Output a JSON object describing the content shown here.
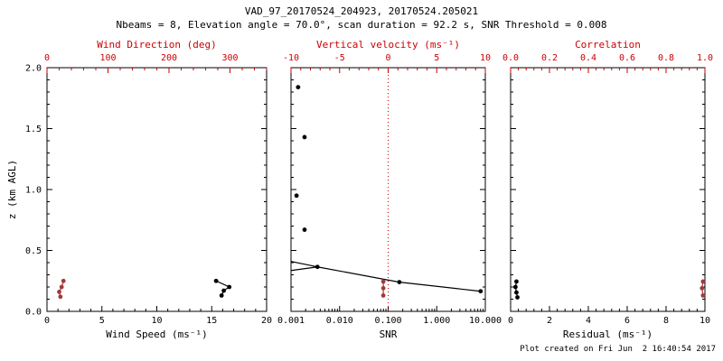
{
  "title": "VAD_97_20170524_204923, 20170524.205021",
  "subtitle": "Nbeams = 8, Elevation angle = 70.0°, scan duration = 92.2 s, SNR Threshold = 0.008",
  "footer": "Plot created on Fri Jun  2 16:40:54 2017",
  "ylabel": "z (km AGL)",
  "colors": {
    "axis_red": "#cc0000",
    "data_red": "#a33a3a",
    "black": "#000000"
  },
  "chart_data": {
    "type": "scatter",
    "ylabel": "z (km AGL)",
    "ylim": [
      0.0,
      2.0
    ],
    "yticks": [
      0.0,
      0.5,
      1.0,
      1.5,
      2.0
    ],
    "ytick_labels": [
      "0.0",
      "0.5",
      "1.0",
      "1.5",
      "2.0"
    ],
    "panels": [
      {
        "name": "wind-speed-panel",
        "xlabel_bottom": "Wind Speed (ms⁻¹)",
        "xlabel_top": "Wind Direction (deg)",
        "xlim_bottom": [
          0,
          20
        ],
        "xticks_bottom": [
          0,
          5,
          10,
          15,
          20
        ],
        "xtick_labels_bottom": [
          "0",
          "5",
          "10",
          "15",
          "20"
        ],
        "xlim_top": [
          0,
          360
        ],
        "xticks_top": [
          0,
          100,
          200,
          300
        ],
        "xtick_labels_top": [
          "0",
          "100",
          "200",
          "300"
        ],
        "series": [
          {
            "name": "wind-speed-points",
            "axis": "bottom",
            "color": "black",
            "line": true,
            "marker": true,
            "points": [
              [
                15.4,
                0.25
              ],
              [
                16.6,
                0.2
              ],
              [
                16.1,
                0.17
              ],
              [
                15.9,
                0.13
              ]
            ]
          },
          {
            "name": "wind-direction-points",
            "axis": "top",
            "color": "red",
            "line": true,
            "marker": true,
            "points": [
              [
                27,
                0.25
              ],
              [
                24,
                0.2
              ],
              [
                20,
                0.16
              ],
              [
                22,
                0.12
              ]
            ]
          }
        ]
      },
      {
        "name": "snr-panel",
        "xlabel_bottom": "SNR",
        "xlabel_top": "Vertical velocity (ms⁻¹)",
        "xscale_bottom": "log",
        "xlim_bottom": [
          0.001,
          10
        ],
        "xticks_bottom": [
          0.001,
          0.01,
          0.1,
          1,
          10
        ],
        "xtick_labels_bottom": [
          "0.001",
          "0.010",
          "0.100",
          "1.000",
          "10.000"
        ],
        "xlim_top": [
          -10,
          10
        ],
        "xticks_top": [
          -10,
          -5,
          0,
          5,
          10
        ],
        "xtick_labels_top": [
          "-10",
          "-5",
          "0",
          "5",
          "10"
        ],
        "refline_top": 0,
        "series": [
          {
            "name": "snr-upper-points",
            "axis": "bottom",
            "color": "black",
            "line": false,
            "marker": true,
            "points": [
              [
                0.0014,
                1.84
              ],
              [
                0.0019,
                1.43
              ],
              [
                0.0013,
                0.95
              ],
              [
                0.0019,
                0.67
              ]
            ]
          },
          {
            "name": "snr-spur-line",
            "axis": "bottom",
            "color": "black",
            "line": true,
            "marker": false,
            "points": [
              [
                0.001,
                0.41
              ],
              [
                0.0035,
                0.365
              ],
              [
                0.001,
                0.335
              ]
            ]
          },
          {
            "name": "snr-profile",
            "axis": "bottom",
            "color": "black",
            "line": true,
            "marker": true,
            "points": [
              [
                0.0035,
                0.365
              ],
              [
                0.17,
                0.24
              ],
              [
                8.0,
                0.165
              ]
            ]
          },
          {
            "name": "vertical-velocity-points",
            "axis": "top",
            "color": "red",
            "line": true,
            "marker": true,
            "points": [
              [
                -0.5,
                0.245
              ],
              [
                -0.5,
                0.19
              ],
              [
                -0.5,
                0.13
              ]
            ]
          }
        ]
      },
      {
        "name": "residual-panel",
        "xlabel_bottom": "Residual (ms⁻¹)",
        "xlabel_top": "Correlation",
        "xlim_bottom": [
          0,
          10
        ],
        "xticks_bottom": [
          0,
          2,
          4,
          6,
          8,
          10
        ],
        "xtick_labels_bottom": [
          "0",
          "2",
          "4",
          "6",
          "8",
          "10"
        ],
        "xlim_top": [
          0.0,
          1.0
        ],
        "xticks_top": [
          0.0,
          0.2,
          0.4,
          0.6,
          0.8,
          1.0
        ],
        "xtick_labels_top": [
          "0.0",
          "0.2",
          "0.4",
          "0.6",
          "0.8",
          "1.0"
        ],
        "series": [
          {
            "name": "residual-points",
            "axis": "bottom",
            "color": "black",
            "line": true,
            "marker": true,
            "points": [
              [
                0.3,
                0.245
              ],
              [
                0.25,
                0.2
              ],
              [
                0.3,
                0.155
              ],
              [
                0.35,
                0.115
              ]
            ]
          },
          {
            "name": "correlation-points",
            "axis": "top",
            "color": "red",
            "line": true,
            "marker": true,
            "points": [
              [
                0.99,
                0.245
              ],
              [
                0.985,
                0.19
              ],
              [
                0.99,
                0.13
              ]
            ]
          }
        ]
      }
    ]
  }
}
